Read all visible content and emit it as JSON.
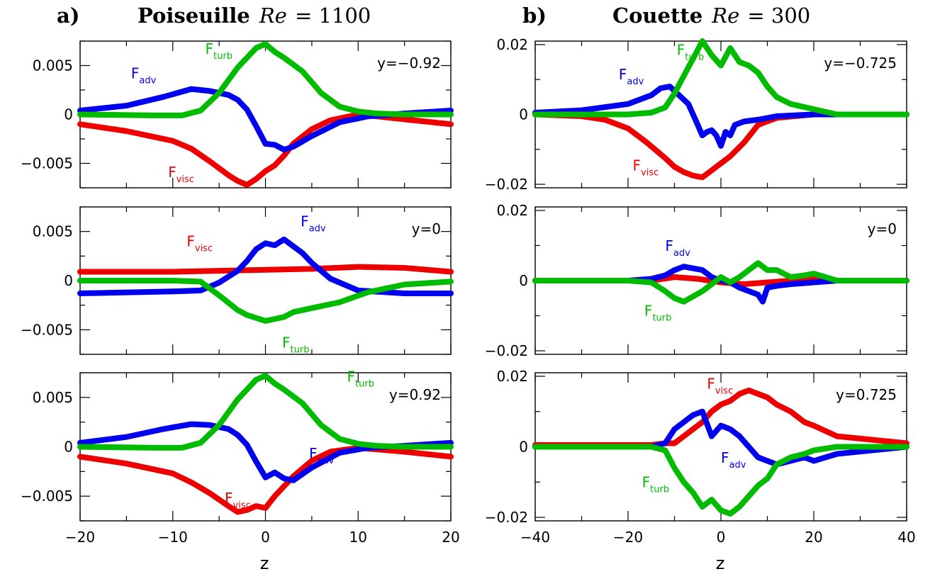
{
  "colors": {
    "adv": "#0000ee",
    "visc": "#ee0000",
    "turb": "#00bb00"
  },
  "columns": [
    {
      "letter": "a)",
      "title": "Poiseuille",
      "re_symbol": "Re",
      "re_value": "= 1100",
      "xticks": [
        "−20",
        "−10",
        "0",
        "10",
        "20"
      ],
      "yticks": [
        "0.005",
        "0",
        "−0.005"
      ]
    },
    {
      "letter": "b)",
      "title": "Couette",
      "re_symbol": "Re",
      "re_value": "= 300",
      "xticks": [
        "−40",
        "−20",
        "0",
        "20",
        "40"
      ],
      "yticks": [
        "0.02",
        "0",
        "−0.02"
      ]
    }
  ],
  "xlabel": "z",
  "chart_data": [
    {
      "type": "line",
      "panel": "a-top",
      "note": "y=−0.92",
      "xlim": [
        -20,
        20
      ],
      "ylim": [
        -0.0075,
        0.0075
      ],
      "series": [
        {
          "name": "F",
          "sub": "adv",
          "color": "#0000ee",
          "x": [
            -20,
            -15,
            -11,
            -8,
            -6,
            -4,
            -3,
            -2,
            -1,
            0,
            1,
            2,
            3,
            5,
            8,
            11,
            15,
            20
          ],
          "y": [
            0.0004,
            0.0009,
            0.0018,
            0.0026,
            0.0024,
            0.002,
            0.0015,
            0.0005,
            -0.0012,
            -0.003,
            -0.0031,
            -0.0036,
            -0.0033,
            -0.0022,
            -0.0008,
            -0.0002,
            0.0001,
            0.0004
          ]
        },
        {
          "name": "F",
          "sub": "visc",
          "color": "#ee0000",
          "x": [
            -20,
            -15,
            -10,
            -8,
            -6,
            -4,
            -3,
            -2,
            -1,
            0,
            1,
            2,
            3,
            5,
            7,
            10,
            15,
            20
          ],
          "y": [
            -0.001,
            -0.0017,
            -0.0027,
            -0.0035,
            -0.0048,
            -0.0062,
            -0.0068,
            -0.0072,
            -0.0066,
            -0.0058,
            -0.0052,
            -0.0042,
            -0.003,
            -0.0015,
            -0.0006,
            0,
            -0.0005,
            -0.001
          ]
        },
        {
          "name": "F",
          "sub": "turb",
          "color": "#00bb00",
          "x": [
            -20,
            -12,
            -9,
            -7,
            -5,
            -3,
            -1,
            0,
            1,
            2,
            4,
            6,
            8,
            10,
            12,
            15,
            20
          ],
          "y": [
            0,
            -0.0001,
            -0.0001,
            0.0004,
            0.0022,
            0.0048,
            0.0068,
            0.0072,
            0.0064,
            0.0058,
            0.0044,
            0.0022,
            0.0008,
            0.0003,
            0.0001,
            0,
            0
          ]
        }
      ],
      "labels": [
        {
          "series": 0,
          "x": -14.5,
          "y": 0.0037
        },
        {
          "series": 1,
          "x": -10.5,
          "y": -0.0064
        },
        {
          "series": 2,
          "x": -6.5,
          "y": 0.0062
        }
      ]
    },
    {
      "type": "line",
      "panel": "a-mid",
      "note": "y=0",
      "xlim": [
        -20,
        20
      ],
      "ylim": [
        -0.0075,
        0.0075
      ],
      "series": [
        {
          "name": "F",
          "sub": "adv",
          "color": "#0000ee",
          "x": [
            -20,
            -15,
            -10,
            -7,
            -5,
            -3,
            -2,
            -1,
            0,
            1,
            2,
            3,
            4,
            5,
            7,
            10,
            15,
            20
          ],
          "y": [
            -0.0013,
            -0.0012,
            -0.0011,
            -0.001,
            -0.0002,
            0.001,
            0.002,
            0.0032,
            0.0038,
            0.0036,
            0.0042,
            0.0035,
            0.0028,
            0.0018,
            0.0002,
            -0.001,
            -0.0013,
            -0.0013
          ]
        },
        {
          "name": "F",
          "sub": "visc",
          "color": "#ee0000",
          "x": [
            -20,
            -10,
            -5,
            0,
            5,
            10,
            15,
            20
          ],
          "y": [
            0.0009,
            0.0009,
            0.001,
            0.0011,
            0.0012,
            0.0014,
            0.0013,
            0.0009
          ]
        },
        {
          "name": "F",
          "sub": "turb",
          "color": "#00bb00",
          "x": [
            -20,
            -10,
            -7,
            -5,
            -3,
            -2,
            -1,
            0,
            1,
            2,
            3,
            5,
            8,
            11,
            15,
            20
          ],
          "y": [
            0,
            0,
            -0.0001,
            -0.0015,
            -0.003,
            -0.0035,
            -0.0038,
            -0.0041,
            -0.0039,
            -0.0037,
            -0.0032,
            -0.0028,
            -0.0022,
            -0.0012,
            -0.0004,
            -0.0001
          ]
        }
      ],
      "labels": [
        {
          "series": 0,
          "x": 3.8,
          "y": 0.0055
        },
        {
          "series": 1,
          "x": -8.5,
          "y": 0.0035
        },
        {
          "series": 2,
          "x": 1.8,
          "y": -0.0068
        }
      ]
    },
    {
      "type": "line",
      "panel": "a-bot",
      "note": "y=0.92",
      "xlim": [
        -20,
        20
      ],
      "ylim": [
        -0.0075,
        0.0075
      ],
      "series": [
        {
          "name": "F",
          "sub": "adv",
          "color": "#0000ee",
          "x": [
            -20,
            -15,
            -11,
            -8,
            -6,
            -4,
            -3,
            -2,
            -1,
            0,
            1,
            2,
            3,
            5,
            8,
            11,
            15,
            20
          ],
          "y": [
            0.0004,
            0.001,
            0.0018,
            0.0023,
            0.0022,
            0.0018,
            0.0012,
            0.0002,
            -0.0015,
            -0.0031,
            -0.0026,
            -0.0032,
            -0.0034,
            -0.0021,
            -0.0006,
            -0.0001,
            0.0001,
            0.0004
          ]
        },
        {
          "name": "F",
          "sub": "visc",
          "color": "#ee0000",
          "x": [
            -20,
            -15,
            -10,
            -8,
            -6,
            -4,
            -3,
            -2,
            -1,
            0,
            1,
            2,
            3,
            5,
            7,
            10,
            15,
            20
          ],
          "y": [
            -0.001,
            -0.0017,
            -0.0027,
            -0.0036,
            -0.0047,
            -0.006,
            -0.0066,
            -0.0064,
            -0.006,
            -0.0062,
            -0.005,
            -0.004,
            -0.003,
            -0.0014,
            -0.0005,
            -0.0001,
            -0.0005,
            -0.001
          ]
        },
        {
          "name": "F",
          "sub": "turb",
          "color": "#00bb00",
          "x": [
            -20,
            -12,
            -9,
            -7,
            -5,
            -3,
            -1,
            0,
            1,
            2,
            4,
            6,
            8,
            10,
            12,
            15,
            20
          ],
          "y": [
            0,
            -0.0001,
            -0.0001,
            0.0004,
            0.0022,
            0.0048,
            0.0068,
            0.0072,
            0.0064,
            0.0058,
            0.0044,
            0.0022,
            0.0008,
            0.0003,
            0.0001,
            0,
            0
          ]
        }
      ],
      "labels": [
        {
          "series": 0,
          "x": 4.7,
          "y": -0.0012
        },
        {
          "series": 1,
          "x": -4.4,
          "y": -0.0057
        },
        {
          "series": 2,
          "x": 8.8,
          "y": 0.0066
        }
      ]
    },
    {
      "type": "line",
      "panel": "b-top",
      "note": "y=−0.725",
      "xlim": [
        -40,
        40
      ],
      "ylim": [
        -0.021,
        0.021
      ],
      "series": [
        {
          "name": "F",
          "sub": "adv",
          "color": "#0000ee",
          "x": [
            -40,
            -30,
            -20,
            -15,
            -13,
            -11,
            -9,
            -7,
            -5,
            -4,
            -3,
            -2,
            -1,
            0,
            1,
            2,
            3,
            5,
            8,
            12,
            20,
            40
          ],
          "y": [
            0.0005,
            0.0012,
            0.003,
            0.0055,
            0.0075,
            0.008,
            0.0055,
            0.003,
            -0.003,
            -0.006,
            -0.005,
            -0.0045,
            -0.006,
            -0.009,
            -0.005,
            -0.006,
            -0.003,
            -0.002,
            -0.0015,
            -0.0005,
            0,
            0
          ]
        },
        {
          "name": "F",
          "sub": "visc",
          "color": "#ee0000",
          "x": [
            -40,
            -30,
            -25,
            -20,
            -16,
            -12,
            -10,
            -8,
            -6,
            -4,
            -2,
            0,
            2,
            5,
            8,
            12,
            20,
            40
          ],
          "y": [
            0,
            -0.0005,
            -0.0015,
            -0.004,
            -0.008,
            -0.0125,
            -0.015,
            -0.0165,
            -0.0175,
            -0.018,
            -0.016,
            -0.014,
            -0.012,
            -0.008,
            -0.003,
            -0.001,
            0,
            0
          ]
        },
        {
          "name": "F",
          "sub": "turb",
          "color": "#00bb00",
          "x": [
            -40,
            -20,
            -15,
            -12,
            -10,
            -8,
            -6,
            -4,
            -2,
            0,
            2,
            4,
            6,
            8,
            10,
            12,
            15,
            20,
            25,
            40
          ],
          "y": [
            0,
            0,
            0.0005,
            0.002,
            0.006,
            0.011,
            0.016,
            0.021,
            0.017,
            0.014,
            0.019,
            0.015,
            0.014,
            0.012,
            0.008,
            0.005,
            0.003,
            0.0015,
            0,
            0
          ]
        }
      ],
      "labels": [
        {
          "series": 0,
          "x": -22,
          "y": 0.01
        },
        {
          "series": 1,
          "x": -19,
          "y": -0.016
        },
        {
          "series": 2,
          "x": -9.5,
          "y": 0.017
        }
      ]
    },
    {
      "type": "line",
      "panel": "b-mid",
      "note": "y=0",
      "xlim": [
        -40,
        40
      ],
      "ylim": [
        -0.021,
        0.021
      ],
      "series": [
        {
          "name": "F",
          "sub": "adv",
          "color": "#0000ee",
          "x": [
            -40,
            -20,
            -15,
            -12,
            -10,
            -8,
            -6,
            -4,
            -2,
            0,
            2,
            4,
            6,
            8,
            9,
            10,
            12,
            15,
            20,
            25,
            40
          ],
          "y": [
            0,
            0,
            0.0005,
            0.0015,
            0.003,
            0.004,
            0.0035,
            0.003,
            0.001,
            0,
            -0.0005,
            -0.002,
            -0.003,
            -0.004,
            -0.006,
            -0.002,
            -0.0015,
            -0.001,
            -0.0005,
            0,
            0
          ]
        },
        {
          "name": "F",
          "sub": "visc",
          "color": "#ee0000",
          "x": [
            -40,
            -15,
            -10,
            -5,
            0,
            5,
            10,
            15,
            20,
            25,
            40
          ],
          "y": [
            0,
            0,
            0.001,
            0.0005,
            -0.0005,
            -0.001,
            -0.0005,
            0,
            0.0005,
            0,
            0
          ]
        },
        {
          "name": "F",
          "sub": "turb",
          "color": "#00bb00",
          "x": [
            -40,
            -20,
            -15,
            -12,
            -10,
            -8,
            -6,
            -4,
            -2,
            0,
            2,
            4,
            6,
            8,
            10,
            12,
            15,
            18,
            20,
            25,
            40
          ],
          "y": [
            0,
            0,
            -0.0005,
            -0.003,
            -0.005,
            -0.006,
            -0.0045,
            -0.003,
            -0.001,
            0.001,
            -0.0005,
            0.001,
            0.003,
            0.005,
            0.003,
            0.003,
            0.001,
            0.0015,
            0.002,
            0,
            0
          ]
        }
      ],
      "labels": [
        {
          "series": 0,
          "x": -12,
          "y": 0.0085
        },
        {
          "series": 2,
          "x": -16.5,
          "y": -0.01
        }
      ]
    },
    {
      "type": "line",
      "panel": "b-bot",
      "note": "y=0.725",
      "xlim": [
        -40,
        40
      ],
      "ylim": [
        -0.021,
        0.021
      ],
      "series": [
        {
          "name": "F",
          "sub": "adv",
          "color": "#0000ee",
          "x": [
            -40,
            -20,
            -15,
            -12,
            -10,
            -8,
            -6,
            -4,
            -2,
            0,
            2,
            4,
            6,
            8,
            10,
            12,
            15,
            18,
            20,
            25,
            40
          ],
          "y": [
            0,
            0,
            0,
            0.001,
            0.005,
            0.007,
            0.009,
            0.01,
            0.003,
            0.006,
            0.005,
            0.003,
            0,
            -0.003,
            -0.004,
            -0.005,
            -0.004,
            -0.003,
            -0.004,
            -0.002,
            0
          ]
        },
        {
          "name": "F",
          "sub": "visc",
          "color": "#ee0000",
          "x": [
            -40,
            -20,
            -15,
            -12,
            -10,
            -8,
            -6,
            -4,
            -2,
            0,
            2,
            4,
            6,
            8,
            10,
            12,
            15,
            18,
            20,
            25,
            40
          ],
          "y": [
            0.0005,
            0.0005,
            0.0005,
            0.001,
            0.001,
            0.003,
            0.005,
            0.007,
            0.01,
            0.012,
            0.013,
            0.015,
            0.016,
            0.015,
            0.014,
            0.012,
            0.01,
            0.007,
            0.006,
            0.003,
            0.001
          ]
        },
        {
          "name": "F",
          "sub": "turb",
          "color": "#00bb00",
          "x": [
            -40,
            -20,
            -15,
            -12,
            -10,
            -8,
            -6,
            -4,
            -2,
            0,
            2,
            4,
            6,
            8,
            10,
            12,
            15,
            18,
            20,
            25,
            40
          ],
          "y": [
            0,
            0,
            0,
            -0.001,
            -0.006,
            -0.01,
            -0.013,
            -0.017,
            -0.015,
            -0.018,
            -0.019,
            -0.017,
            -0.014,
            -0.011,
            -0.009,
            -0.005,
            -0.003,
            -0.002,
            -0.001,
            0,
            0
          ]
        }
      ],
      "labels": [
        {
          "series": 0,
          "x": 0,
          "y": -0.0045
        },
        {
          "series": 1,
          "x": -3,
          "y": 0.0165
        },
        {
          "series": 2,
          "x": -17,
          "y": -0.0115
        }
      ]
    }
  ]
}
